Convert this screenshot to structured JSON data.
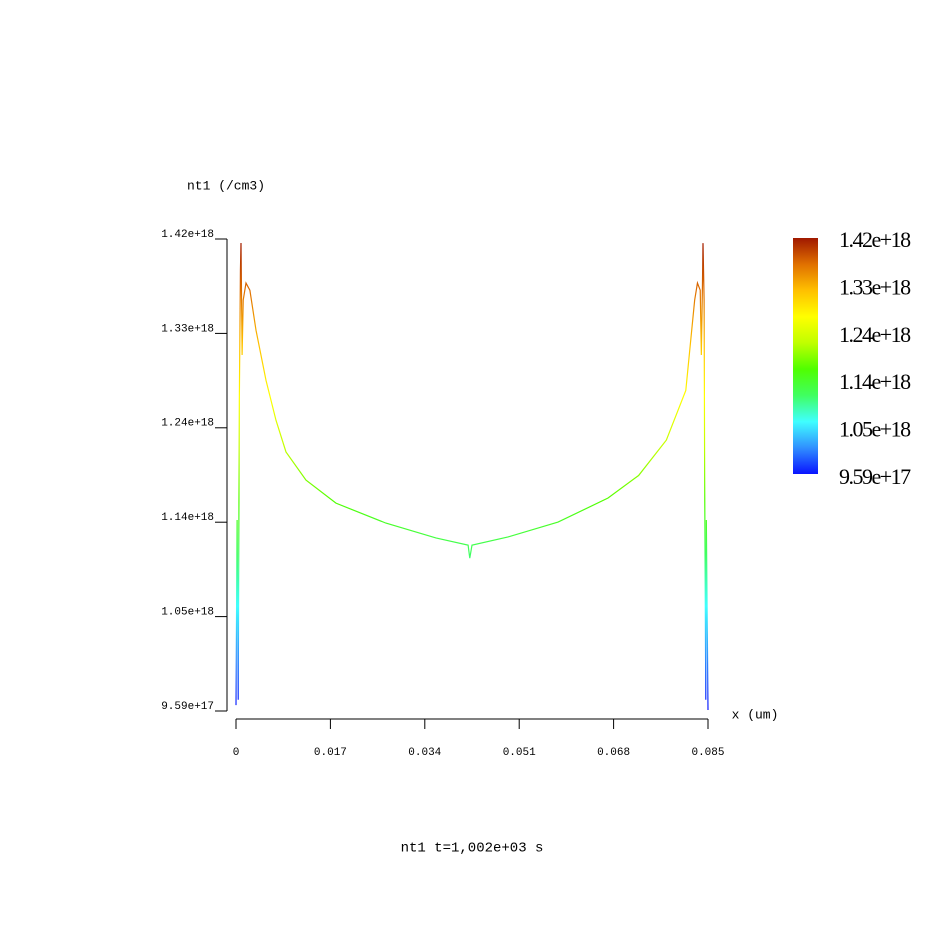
{
  "chart_data": {
    "type": "line",
    "title": "nt1 t=1,002e+03 s",
    "y_label": "nt1 (/cm3)",
    "x_label": "x (um)",
    "xlim": [
      0,
      0.085
    ],
    "xticks": [
      0,
      0.017,
      0.034,
      0.051,
      0.068,
      0.085
    ],
    "ylim": [
      9.59e+17,
      1.42e+18
    ],
    "yticks": [
      {
        "value": 9.59e+17,
        "label": "9.59e+17"
      },
      {
        "value": 1.0512e+18,
        "label": "1.05e+18"
      },
      {
        "value": 1.1434e+18,
        "label": "1.14e+18"
      },
      {
        "value": 1.2356e+18,
        "label": "1.24e+18"
      },
      {
        "value": 1.3278e+18,
        "label": "1.33e+18"
      },
      {
        "value": 1.42e+18,
        "label": "1.42e+18"
      }
    ],
    "colorbar": {
      "colors": [
        "#0a14ff",
        "#3090ff",
        "#40ffff",
        "#40ff60",
        "#50ff00",
        "#c0ff00",
        "#ffff00",
        "#ffc000",
        "#e07000",
        "#a01800"
      ],
      "ticks": [
        {
          "value": 9.59e+17,
          "label": "9.59e+17"
        },
        {
          "value": 1.0512e+18,
          "label": "1.05e+18"
        },
        {
          "value": 1.1434e+18,
          "label": "1.14e+18"
        },
        {
          "value": 1.2356e+18,
          "label": "1.24e+18"
        },
        {
          "value": 1.3278e+18,
          "label": "1.33e+18"
        },
        {
          "value": 1.42e+18,
          "label": "1.42e+18"
        }
      ]
    },
    "series": [
      {
        "name": "nt1",
        "x": [
          0,
          0.0002,
          0.0004,
          0.0006,
          0.0008,
          0.0009,
          0.0011,
          0.0013,
          0.0018,
          0.0025,
          0.0036,
          0.0054,
          0.0072,
          0.009,
          0.0126,
          0.018,
          0.027,
          0.036,
          0.0418,
          0.0421,
          0.0425,
          0.049,
          0.058,
          0.067,
          0.0725,
          0.0775,
          0.081,
          0.0826,
          0.0831,
          0.0836,
          0.0838,
          0.084,
          0.0841,
          0.0843,
          0.0844,
          0.0846,
          0.0847,
          0.085
        ],
        "values": [
          9.647e+17,
          1.1455e+18,
          9.7e+17,
          1.2627e+18,
          1.3897e+18,
          1.4161e+18,
          1.3067e+18,
          1.3604e+18,
          1.377e+18,
          1.37e+18,
          1.331e+18,
          1.282e+18,
          1.243e+18,
          1.212e+18,
          1.1845e+18,
          1.162e+18,
          1.1425e+18,
          1.128e+18,
          1.121e+18,
          1.1083e+18,
          1.121e+18,
          1.129e+18,
          1.1435e+18,
          1.167e+18,
          1.189e+18,
          1.2236e+18,
          1.272e+18,
          1.3604e+18,
          1.377e+18,
          1.37e+18,
          1.3067e+18,
          1.375e+18,
          1.416e+18,
          1.3604e+18,
          1.1845e+18,
          9.7e+17,
          1.1455e+18,
          9.6e+17
        ]
      }
    ]
  }
}
